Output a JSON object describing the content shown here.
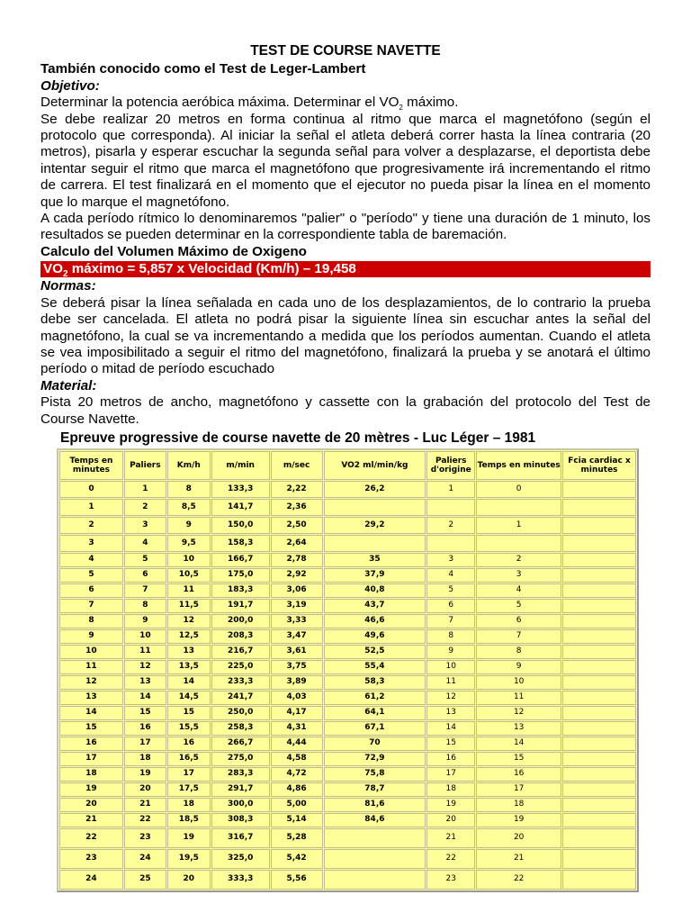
{
  "title": "TEST DE COURSE NAVETTE",
  "subtitle": "También conocido como el Test de Leger-Lambert",
  "objetivo_label": "Objetivo",
  "objetivo_text": "Determinar la potencia aeróbica máxima. Determinar el VO",
  "objetivo_sub": "2",
  "objetivo_end": " máximo.",
  "para1": "Se debe realizar 20 metros en forma continua al ritmo que marca el magnetófono (según el protocolo que corresponda). Al iniciar la señal el atleta deberá correr hasta la línea contraria (20 metros), pisarla y esperar escuchar la segunda señal para volver a desplazarse, el deportista debe intentar seguir el ritmo que marca el magnetófono que progresivamente irá incrementando el ritmo de carrera. El test finalizará en el momento que el ejecutor no pueda pisar la línea en el momento que lo marque el magnetófono.",
  "para2": "A cada período rítmico lo denominaremos \"palier\" o \"período\" y tiene una duración de 1 minuto, los resultados se pueden determinar en la correspondiente tabla de baremación.",
  "calculo_heading": "Calculo del Volumen Máximo de Oxigeno",
  "formula_a": "VO",
  "formula_sub": "2",
  "formula_b": " máximo = 5,857 x Velocidad (Km/h) – 19,458",
  "formula_color": "#cc0000",
  "normas_label": "Normas",
  "normas_text": "Se deberá pisar la línea señalada en cada uno de los desplazamientos, de lo contrario la prueba debe ser cancelada. El atleta no podrá pisar la siguiente línea sin escuchar antes la señal del magnetófono, la cual se va incrementando a medida que los períodos aumentan. Cuando el atleta se vea imposibilitado a seguir el ritmo del magnetófono, finalizará la prueba y se anotará el último período o mitad de período escuchado",
  "material_label": "Material",
  "material_text": "Pista 20 metros de ancho, magnetófono y cassette con la grabación del protocolo del Test de Course Navette.",
  "table_title": "Epreuve progressive de course navette de 20 mètres - Luc Léger – 1981",
  "table_bg": "#ffff99",
  "headers": [
    "Temps en minutes",
    "Paliers",
    "Km/h",
    "m/min",
    "m/sec",
    "VO2 ml/min/kg",
    "Paliers d'origine",
    "Temps en minutes",
    "Fcia cardiac x minutes"
  ],
  "rows": [
    [
      "0",
      "1",
      "8",
      "133,3",
      "2,22",
      "26,2",
      "1",
      "0",
      ""
    ],
    [
      "1",
      "2",
      "8,5",
      "141,7",
      "2,36",
      "",
      "",
      "",
      ""
    ],
    [
      "2",
      "3",
      "9",
      "150,0",
      "2,50",
      "29,2",
      "2",
      "1",
      ""
    ],
    [
      "3",
      "4",
      "9,5",
      "158,3",
      "2,64",
      "",
      "",
      "",
      ""
    ],
    [
      "4",
      "5",
      "10",
      "166,7",
      "2,78",
      "35",
      "3",
      "2",
      ""
    ],
    [
      "5",
      "6",
      "10,5",
      "175,0",
      "2,92",
      "37,9",
      "4",
      "3",
      ""
    ],
    [
      "6",
      "7",
      "11",
      "183,3",
      "3,06",
      "40,8",
      "5",
      "4",
      ""
    ],
    [
      "7",
      "8",
      "11,5",
      "191,7",
      "3,19",
      "43,7",
      "6",
      "5",
      ""
    ],
    [
      "8",
      "9",
      "12",
      "200,0",
      "3,33",
      "46,6",
      "7",
      "6",
      ""
    ],
    [
      "9",
      "10",
      "12,5",
      "208,3",
      "3,47",
      "49,6",
      "8",
      "7",
      ""
    ],
    [
      "10",
      "11",
      "13",
      "216,7",
      "3,61",
      "52,5",
      "9",
      "8",
      ""
    ],
    [
      "11",
      "12",
      "13,5",
      "225,0",
      "3,75",
      "55,4",
      "10",
      "9",
      ""
    ],
    [
      "12",
      "13",
      "14",
      "233,3",
      "3,89",
      "58,3",
      "11",
      "10",
      ""
    ],
    [
      "13",
      "14",
      "14,5",
      "241,7",
      "4,03",
      "61,2",
      "12",
      "11",
      ""
    ],
    [
      "14",
      "15",
      "15",
      "250,0",
      "4,17",
      "64,1",
      "13",
      "12",
      ""
    ],
    [
      "15",
      "16",
      "15,5",
      "258,3",
      "4,31",
      "67,1",
      "14",
      "13",
      ""
    ],
    [
      "16",
      "17",
      "16",
      "266,7",
      "4,44",
      "70",
      "15",
      "14",
      ""
    ],
    [
      "17",
      "18",
      "16,5",
      "275,0",
      "4,58",
      "72,9",
      "16",
      "15",
      ""
    ],
    [
      "18",
      "19",
      "17",
      "283,3",
      "4,72",
      "75,8",
      "17",
      "16",
      ""
    ],
    [
      "19",
      "20",
      "17,5",
      "291,7",
      "4,86",
      "78,7",
      "18",
      "17",
      ""
    ],
    [
      "20",
      "21",
      "18",
      "300,0",
      "5,00",
      "81,6",
      "19",
      "18",
      ""
    ],
    [
      "21",
      "22",
      "18,5",
      "308,3",
      "5,14",
      "84,6",
      "20",
      "19",
      ""
    ],
    [
      "22",
      "23",
      "19",
      "316,7",
      "5,28",
      "",
      "21",
      "20",
      ""
    ],
    [
      "23",
      "24",
      "19,5",
      "325,0",
      "5,42",
      "",
      "22",
      "21",
      ""
    ],
    [
      "24",
      "25",
      "20",
      "333,3",
      "5,56",
      "",
      "23",
      "22",
      ""
    ]
  ]
}
